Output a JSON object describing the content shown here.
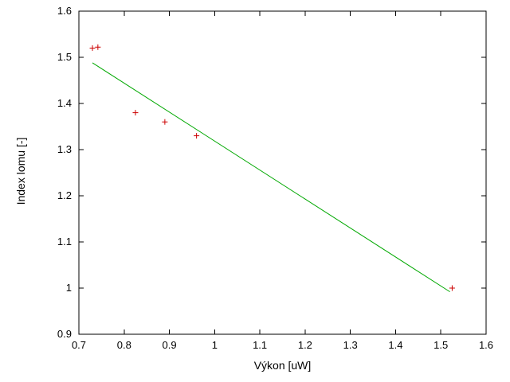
{
  "chart_data": {
    "type": "scatter",
    "title": "",
    "xlabel": "Výkon [uW]",
    "ylabel": "Index lomu [-]",
    "xlim": [
      0.7,
      1.6
    ],
    "ylim": [
      0.9,
      1.6
    ],
    "x_ticks": [
      0.7,
      0.8,
      0.9,
      1.0,
      1.1,
      1.2,
      1.3,
      1.4,
      1.5,
      1.6
    ],
    "y_ticks": [
      0.9,
      1.0,
      1.1,
      1.2,
      1.3,
      1.4,
      1.5,
      1.6
    ],
    "grid": false,
    "legend": "none",
    "colors": {
      "points": "#cc0000",
      "fit_line": "#00a800",
      "axis": "#000000",
      "background": "#ffffff"
    },
    "series": [
      {
        "name": "measured-points",
        "kind": "scatter",
        "marker": "plus",
        "color": "#cc0000",
        "points": [
          [
            0.73,
            1.52
          ],
          [
            0.742,
            1.522
          ],
          [
            0.825,
            1.38
          ],
          [
            0.89,
            1.36
          ],
          [
            0.96,
            1.33
          ],
          [
            1.525,
            1.0
          ]
        ]
      },
      {
        "name": "linear-fit",
        "kind": "line",
        "color": "#00a800",
        "points": [
          [
            0.73,
            1.488
          ],
          [
            1.52,
            0.992
          ]
        ]
      }
    ]
  }
}
